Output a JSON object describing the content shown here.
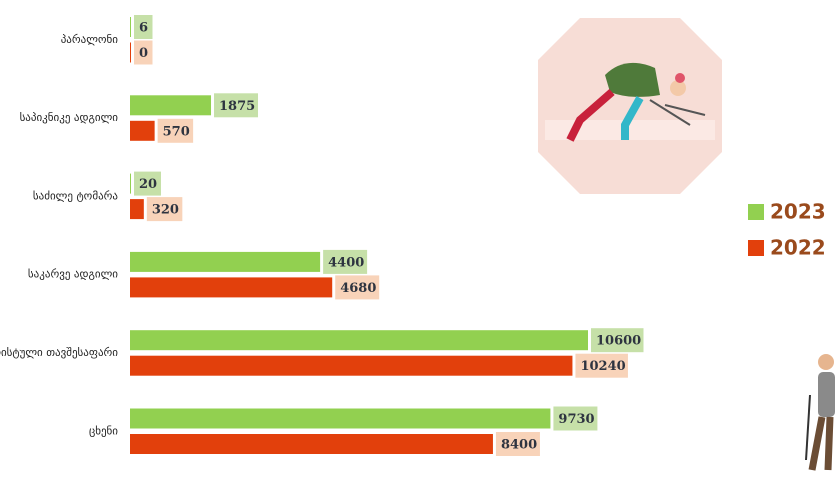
{
  "chart_data": {
    "type": "bar",
    "orientation": "horizontal",
    "categories": [
      "პარალონი",
      "საპიკნიკე ადგილი",
      "საძილე ტომარა",
      "საკარვე ადგილი",
      "ტურისტული თავშესაფარი",
      "ცხენი"
    ],
    "series": [
      {
        "name": "2023",
        "color": "#92d050",
        "label_background": "#c6e0a8",
        "values": [
          6,
          1875,
          20,
          4400,
          10600,
          9730
        ]
      },
      {
        "name": "2022",
        "color": "#e2400c",
        "label_background": "#f8d3b9",
        "values": [
          0,
          570,
          320,
          4680,
          10240,
          8400
        ]
      }
    ],
    "legend": "right"
  }
}
